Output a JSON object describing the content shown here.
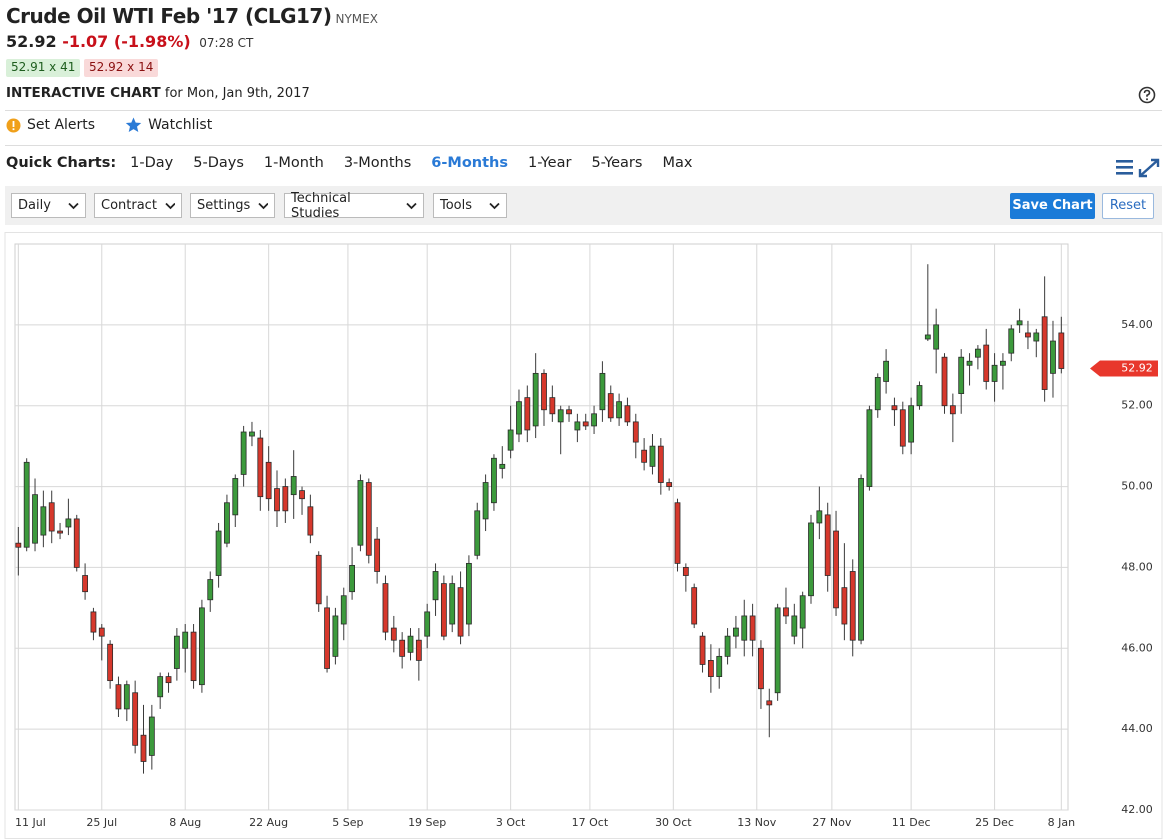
{
  "header": {
    "title": "Crude Oil WTI Feb '17 (CLG17)",
    "exchange": "NYMEX",
    "last": "52.92",
    "change": "-1.07",
    "change_percent": "(-1.98%)",
    "time": "07:28 CT",
    "bid": "52.91 x 41",
    "ask": "52.92 x 14",
    "section": "INTERACTIVE CHART",
    "date": "for Mon, Jan 9th, 2017"
  },
  "actions": [
    "Set Alerts",
    "Watchlist"
  ],
  "quick_charts": {
    "label": "Quick Charts:",
    "options": [
      "1-Day",
      "5-Days",
      "1-Month",
      "3-Months",
      "6-Months",
      "1-Year",
      "5-Years",
      "Max"
    ],
    "selected": 4
  },
  "toolbar": {
    "dropdowns": [
      "Daily",
      "Contract",
      "Settings",
      "Technical Studies",
      "Tools"
    ],
    "buttons": [
      "Save Chart",
      "Reset"
    ]
  },
  "chart_data": {
    "type": "candlestick",
    "x": [
      0,
      1,
      2,
      3,
      4,
      5,
      6,
      7,
      8,
      9,
      10,
      11,
      12,
      13,
      14,
      15,
      16,
      17,
      18,
      19,
      20,
      21,
      22,
      23,
      24,
      25,
      26,
      27,
      28,
      29,
      30,
      31,
      32,
      33,
      34,
      35,
      36,
      37,
      38,
      39,
      40,
      41,
      42,
      43,
      44,
      45,
      46,
      47,
      48,
      49,
      50,
      51,
      52,
      53,
      54,
      55,
      56,
      57,
      58,
      59,
      60,
      61,
      62,
      63,
      64,
      65,
      66,
      67,
      68,
      69,
      70,
      71,
      72,
      73,
      74,
      75,
      76,
      77,
      78,
      79,
      80,
      81,
      82,
      83,
      84,
      85,
      86,
      87,
      88,
      89,
      90,
      91,
      92,
      93,
      94,
      95,
      96,
      97,
      98,
      99,
      100,
      101,
      102,
      103,
      104,
      105,
      106,
      107,
      108,
      109,
      110,
      111,
      112,
      113,
      114,
      115,
      116,
      117,
      118,
      119,
      120,
      121,
      122,
      123,
      124,
      125
    ],
    "open": [
      48.6,
      48.5,
      48.6,
      48.8,
      49.6,
      48.9,
      49.0,
      49.2,
      47.8,
      46.9,
      46.5,
      46.1,
      45.1,
      44.5,
      44.9,
      43.85,
      43.35,
      44.8,
      45.3,
      45.5,
      46.0,
      46.4,
      45.1,
      47.2,
      47.8,
      48.6,
      49.3,
      50.3,
      51.25,
      51.2,
      50.6,
      49.95,
      50.0,
      49.8,
      49.9,
      49.5,
      48.3,
      47.0,
      45.8,
      46.6,
      47.4,
      48.55,
      50.1,
      48.7,
      47.6,
      46.5,
      46.2,
      45.9,
      46.2,
      46.3,
      47.2,
      47.6,
      46.6,
      47.5,
      46.6,
      48.3,
      49.2,
      49.6,
      50.45,
      50.9,
      51.3,
      52.2,
      51.5,
      52.8,
      52.2,
      51.6,
      51.9,
      51.4,
      51.6,
      51.5,
      51.9,
      52.3,
      51.7,
      52.0,
      51.6,
      50.9,
      50.5,
      51.0,
      50.1,
      49.6,
      48.0,
      47.5,
      46.3,
      45.7,
      45.3,
      45.8,
      46.3,
      46.2,
      46.8,
      46.0,
      44.7,
      44.9,
      47.0,
      46.3,
      46.5,
      47.3,
      49.1,
      49.3,
      48.9,
      47.5,
      47.9,
      46.2,
      50.0,
      51.9,
      52.6,
      52.0,
      51.9,
      51.1,
      52.0,
      53.65,
      53.4,
      53.2,
      52.0,
      52.3,
      53.0,
      53.2,
      53.5,
      52.6,
      53.0,
      53.3,
      54.0,
      53.8,
      53.6,
      54.2,
      52.8,
      53.8
    ],
    "high": [
      49.0,
      50.7,
      50.2,
      49.9,
      49.9,
      49.1,
      49.7,
      49.3,
      48.1,
      47.0,
      46.6,
      46.2,
      45.3,
      45.2,
      45.2,
      44.6,
      44.6,
      45.4,
      45.4,
      46.5,
      46.6,
      46.6,
      47.2,
      47.9,
      49.1,
      49.8,
      50.3,
      51.5,
      51.6,
      51.4,
      51.0,
      50.4,
      50.2,
      50.9,
      50.0,
      49.8,
      48.4,
      47.3,
      47.0,
      47.5,
      48.5,
      50.3,
      50.2,
      49.0,
      47.8,
      46.8,
      46.4,
      46.5,
      46.5,
      47.1,
      48.1,
      47.8,
      47.8,
      47.9,
      48.3,
      49.6,
      50.3,
      50.8,
      51.0,
      52.0,
      52.4,
      52.5,
      53.3,
      52.9,
      52.5,
      52.0,
      52.0,
      51.8,
      51.8,
      52.0,
      53.1,
      52.5,
      52.3,
      52.2,
      51.8,
      51.2,
      51.3,
      51.2,
      50.2,
      49.7,
      48.1,
      47.6,
      46.4,
      46.1,
      46.0,
      46.5,
      46.8,
      47.2,
      47.1,
      46.2,
      45.0,
      47.1,
      47.5,
      47.1,
      47.4,
      49.3,
      50.0,
      49.6,
      49.4,
      48.6,
      48.2,
      50.3,
      52.0,
      52.8,
      53.4,
      52.2,
      52.1,
      52.2,
      52.6,
      55.5,
      54.4,
      53.3,
      52.3,
      53.4,
      53.3,
      53.5,
      53.9,
      53.3,
      53.3,
      54.0,
      54.4,
      54.1,
      53.9,
      55.2,
      54.1,
      54.2
    ],
    "low": [
      47.8,
      48.4,
      48.4,
      48.5,
      48.6,
      48.7,
      48.8,
      47.9,
      47.2,
      46.2,
      45.7,
      45.0,
      44.3,
      44.2,
      43.4,
      42.9,
      43.0,
      44.5,
      44.9,
      45.2,
      45.4,
      45.0,
      44.9,
      46.9,
      47.5,
      48.5,
      49.0,
      50.0,
      51.0,
      49.4,
      49.4,
      49.0,
      49.1,
      49.2,
      49.3,
      48.6,
      46.9,
      45.4,
      45.6,
      46.2,
      47.2,
      48.4,
      48.1,
      47.6,
      46.2,
      45.9,
      45.5,
      45.7,
      45.2,
      46.0,
      46.8,
      46.2,
      46.4,
      46.1,
      46.3,
      48.2,
      48.9,
      49.4,
      50.2,
      50.7,
      51.1,
      51.1,
      51.2,
      51.5,
      51.6,
      50.8,
      51.6,
      51.1,
      51.4,
      51.3,
      51.6,
      51.6,
      51.5,
      51.5,
      50.7,
      50.4,
      50.3,
      49.8,
      49.9,
      47.9,
      47.4,
      46.5,
      45.4,
      44.9,
      45.0,
      45.6,
      46.0,
      45.8,
      45.8,
      44.5,
      43.8,
      44.7,
      46.6,
      46.1,
      46.0,
      47.1,
      48.7,
      47.4,
      46.8,
      46.2,
      45.8,
      46.1,
      49.9,
      51.7,
      52.3,
      51.5,
      50.8,
      50.8,
      51.9,
      53.6,
      52.8,
      51.8,
      51.1,
      51.8,
      52.5,
      52.9,
      52.4,
      52.1,
      52.4,
      53.1,
      53.8,
      53.4,
      53.2,
      52.1,
      52.2,
      52.8
    ],
    "close": [
      48.5,
      50.6,
      49.8,
      49.5,
      48.9,
      48.85,
      49.2,
      48.0,
      47.4,
      46.4,
      46.3,
      45.2,
      44.5,
      45.1,
      43.6,
      43.2,
      44.3,
      45.3,
      45.15,
      46.3,
      46.4,
      45.2,
      47.0,
      47.7,
      48.9,
      49.6,
      50.2,
      51.35,
      51.35,
      49.75,
      49.7,
      49.4,
      49.4,
      50.25,
      49.7,
      48.8,
      47.1,
      45.5,
      46.8,
      47.3,
      48.05,
      50.15,
      48.3,
      47.9,
      46.4,
      46.2,
      45.8,
      46.3,
      45.7,
      46.9,
      47.9,
      46.3,
      47.6,
      46.3,
      48.1,
      49.4,
      50.1,
      50.7,
      50.55,
      51.4,
      52.1,
      51.4,
      52.8,
      51.9,
      51.8,
      51.9,
      51.8,
      51.6,
      51.5,
      51.8,
      52.8,
      51.7,
      52.1,
      51.6,
      51.1,
      50.6,
      51.0,
      50.1,
      50.0,
      48.1,
      47.8,
      46.6,
      45.6,
      45.3,
      45.8,
      46.3,
      46.5,
      46.8,
      46.2,
      45.0,
      44.6,
      47.0,
      46.8,
      46.8,
      47.3,
      49.1,
      49.4,
      47.8,
      47.0,
      46.6,
      46.2,
      50.2,
      51.9,
      52.7,
      53.1,
      51.9,
      51.0,
      52.0,
      52.5,
      53.75,
      54.0,
      52.0,
      51.8,
      53.2,
      53.1,
      53.4,
      52.6,
      53.0,
      53.1,
      53.9,
      54.1,
      53.7,
      53.8,
      52.4,
      53.6,
      52.92
    ],
    "up_color": "#3c9a3c",
    "down_color": "#d6382c",
    "xlim": [
      -0.4,
      125.8
    ],
    "xticks": [
      {
        "value": 0,
        "label": "11 Jul"
      },
      {
        "value": 10,
        "label": "25 Jul"
      },
      {
        "value": 20,
        "label": "8 Aug"
      },
      {
        "value": 30,
        "label": "22 Aug"
      },
      {
        "value": 39.5,
        "label": "5 Sep"
      },
      {
        "value": 49,
        "label": "19 Sep"
      },
      {
        "value": 59,
        "label": "3 Oct"
      },
      {
        "value": 68.5,
        "label": "17 Oct"
      },
      {
        "value": 78.5,
        "label": "30 Oct"
      },
      {
        "value": 88.5,
        "label": "13 Nov"
      },
      {
        "value": 97.5,
        "label": "27 Nov"
      },
      {
        "value": 107,
        "label": "11 Dec"
      },
      {
        "value": 117,
        "label": "25 Dec"
      },
      {
        "value": 125,
        "label": "8 Jan"
      }
    ],
    "ylim": [
      42,
      56
    ],
    "yticks": [
      {
        "value": 42,
        "label": "42.00"
      },
      {
        "value": 44,
        "label": "44.00"
      },
      {
        "value": 46,
        "label": "46.00"
      },
      {
        "value": 48,
        "label": "48.00"
      },
      {
        "value": 50,
        "label": "50.00"
      },
      {
        "value": 52,
        "label": "52.00"
      },
      {
        "value": 54,
        "label": "54.00"
      }
    ],
    "grid": true,
    "last_price": 52.92,
    "last_price_color": "#e8372c"
  }
}
